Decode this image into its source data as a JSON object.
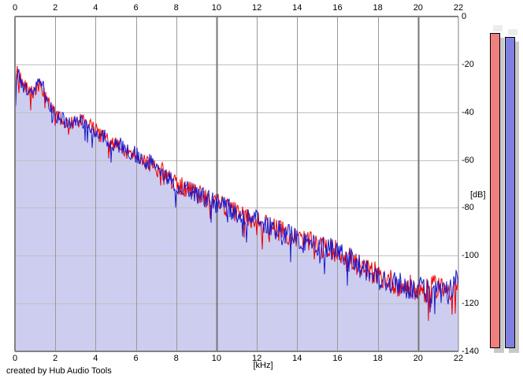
{
  "footer": {
    "credit": "created by Hub Audio Tools"
  },
  "chart_data": {
    "type": "line",
    "title": "",
    "xlabel": "[kHz]",
    "ylabel": "[dB]",
    "xlim": [
      0,
      22
    ],
    "ylim": [
      -140,
      0
    ],
    "grid": true,
    "x_ticks": [
      0,
      2,
      4,
      6,
      8,
      10,
      12,
      14,
      16,
      18,
      20,
      22
    ],
    "x_ticks_shown_top_and_bottom": true,
    "y_ticks": [
      0,
      -20,
      -40,
      -60,
      -80,
      -100,
      -120,
      -140
    ],
    "major_x_gridlines_khz": [
      10,
      20
    ],
    "fill_under_curve_color": "#cdcdef",
    "gridline_color_horizontal": "#c0c0c0",
    "gridline_color_vertical": "#999999",
    "gridline_color_vertical_major": "#777777",
    "border_color": "#828282",
    "noise": {
      "amplitude_db_at_0khz": 3,
      "amplitude_db_at_22khz": 5.5,
      "note": "dense FFT noise around envelope, occasional deep dips"
    },
    "x_khz_envelope": [
      0,
      0.1,
      0.3,
      0.5,
      0.7,
      0.9,
      1.1,
      1.3,
      1.5,
      1.8,
      2,
      2.3,
      2.6,
      3,
      3.3,
      3.6,
      4,
      4.5,
      5,
      5.5,
      6,
      6.5,
      7,
      7.5,
      8,
      8.5,
      9,
      9.5,
      10,
      10.5,
      11,
      11.5,
      12,
      12.5,
      13,
      13.5,
      14,
      14.5,
      15,
      15.5,
      16,
      16.5,
      17,
      17.5,
      18,
      18.5,
      19,
      19.5,
      20,
      20.5,
      21,
      21.5,
      22
    ],
    "series": [
      {
        "name": "channel-1-red",
        "color": "#ee0000",
        "envelope_db": [
          -40,
          -23,
          -27,
          -29,
          -32,
          -31,
          -29,
          -28,
          -34,
          -38,
          -41,
          -43,
          -44,
          -44,
          -43,
          -45,
          -48,
          -51,
          -53,
          -56,
          -58,
          -61,
          -63,
          -66,
          -70,
          -72,
          -74,
          -76,
          -77,
          -80,
          -82,
          -84,
          -85,
          -87,
          -89,
          -91,
          -93,
          -94,
          -96,
          -97,
          -98,
          -100,
          -104,
          -106,
          -108,
          -110,
          -112,
          -113,
          -114,
          -115,
          -112,
          -114,
          -112
        ]
      },
      {
        "name": "channel-2-blue",
        "color": "#1a1acc",
        "fill_under": true,
        "envelope_db": [
          -40,
          -22,
          -27,
          -30,
          -32,
          -31,
          -29,
          -25,
          -34,
          -38,
          -41,
          -43,
          -44,
          -44,
          -43,
          -45,
          -48,
          -51,
          -53,
          -55,
          -58,
          -60,
          -63,
          -67,
          -71,
          -72,
          -74,
          -76,
          -78,
          -80,
          -82,
          -84,
          -85,
          -87,
          -89,
          -91,
          -93,
          -94,
          -96,
          -97,
          -98,
          -100,
          -104,
          -106,
          -109,
          -111,
          -112,
          -113,
          -114,
          -115,
          -115,
          -116,
          -110
        ]
      }
    ]
  },
  "level_meters": {
    "bars": [
      {
        "channel": "left",
        "color": "#f08080",
        "border": "#000000",
        "peak_db": -7
      },
      {
        "channel": "right",
        "color": "#8080e0",
        "border": "#000000",
        "peak_db": -8.5
      }
    ],
    "shadow_color": "#c9c9c9",
    "peak_ghost_color": "#ececec"
  }
}
